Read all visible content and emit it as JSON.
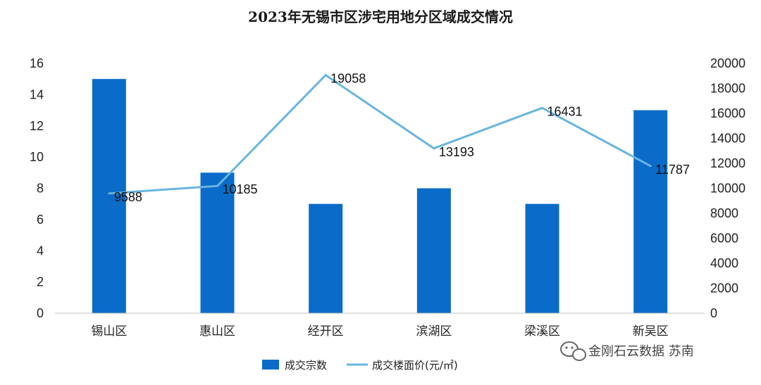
{
  "chart_data": {
    "type": "bar+line",
    "title": "2023年无锡市区涉宅用地分区域成交情况",
    "categories": [
      "锡山区",
      "惠山区",
      "经开区",
      "滨湖区",
      "梁溪区",
      "新吴区"
    ],
    "series": [
      {
        "name": "成交宗数",
        "type": "bar",
        "axis": "left",
        "color": "#0a6cc8",
        "values": [
          15,
          9,
          7,
          8,
          7,
          13
        ]
      },
      {
        "name": "成交楼面价(元/㎡)",
        "type": "line",
        "axis": "right",
        "color": "#69b4e0",
        "values": [
          9588,
          10185,
          19058,
          13193,
          16431,
          11787
        ]
      }
    ],
    "y_left": {
      "min": 0,
      "max": 16,
      "step": 2,
      "ticks": [
        "0",
        "2",
        "4",
        "6",
        "8",
        "10",
        "12",
        "14",
        "16"
      ]
    },
    "y_right": {
      "min": 0,
      "max": 20000,
      "step": 2000,
      "ticks": [
        "0",
        "2000",
        "4000",
        "6000",
        "8000",
        "10000",
        "12000",
        "14000",
        "16000",
        "18000",
        "20000"
      ]
    },
    "data_labels": [
      "9588",
      "10185",
      "19058",
      "13193",
      "16431",
      "11787"
    ],
    "legend_position": "bottom",
    "grid": false
  },
  "watermark": {
    "text": "金刚石云数据 苏南",
    "icon": "wechat-icon"
  }
}
